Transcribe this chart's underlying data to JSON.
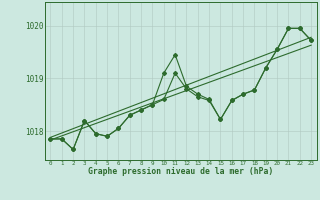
{
  "title": "Graphe pression niveau de la mer (hPa)",
  "bg_color": "#cce8e0",
  "grid_color": "#b0c8c0",
  "line_color": "#2d6b2d",
  "x_ticks": [
    0,
    1,
    2,
    3,
    4,
    5,
    6,
    7,
    8,
    9,
    10,
    11,
    12,
    13,
    14,
    15,
    16,
    17,
    18,
    19,
    20,
    21,
    22,
    23
  ],
  "y_ticks": [
    1018,
    1019,
    1020
  ],
  "ylim": [
    1017.45,
    1020.45
  ],
  "xlim": [
    -0.5,
    23.5
  ],
  "series1_x": [
    0,
    1,
    2,
    3,
    4,
    5,
    6,
    7,
    8,
    9,
    10,
    11,
    12,
    13,
    14,
    15,
    16,
    17,
    18,
    19,
    20,
    21,
    22,
    23
  ],
  "series1_y": [
    1017.85,
    1017.85,
    1017.65,
    1018.2,
    1017.95,
    1017.9,
    1018.05,
    1018.3,
    1018.4,
    1018.5,
    1018.6,
    1019.1,
    1018.8,
    1018.65,
    1018.58,
    1018.22,
    1018.58,
    1018.7,
    1018.78,
    1019.2,
    1019.55,
    1019.95,
    1019.95,
    1019.72
  ],
  "series2_x": [
    0,
    1,
    2,
    3,
    4,
    5,
    6,
    7,
    8,
    9,
    10,
    11,
    12,
    13,
    14,
    15,
    16,
    17,
    18,
    19,
    20,
    21,
    22,
    23
  ],
  "series2_y": [
    1017.85,
    1017.85,
    1017.65,
    1018.2,
    1017.95,
    1017.9,
    1018.05,
    1018.3,
    1018.4,
    1018.5,
    1019.1,
    1019.45,
    1018.85,
    1018.7,
    1018.6,
    1018.22,
    1018.58,
    1018.7,
    1018.78,
    1019.2,
    1019.55,
    1019.95,
    1019.95,
    1019.72
  ],
  "trend_x": [
    0,
    23
  ],
  "trend_y": [
    1017.88,
    1019.78
  ],
  "trend2_x": [
    0,
    23
  ],
  "trend2_y": [
    1017.83,
    1019.63
  ]
}
